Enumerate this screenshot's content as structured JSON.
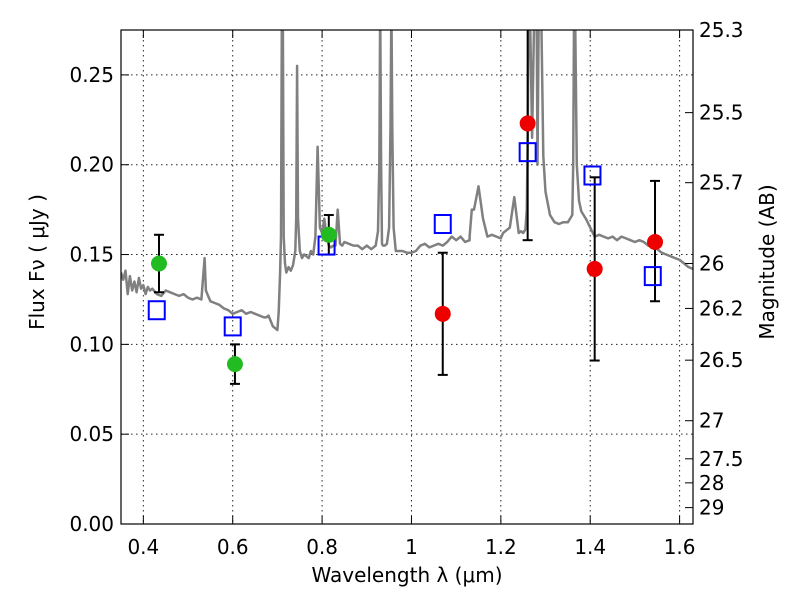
{
  "chart_data": {
    "type": "scatter",
    "xlabel": "Wavelength  λ (μm)",
    "ylabel": "Flux  Fν  ( μJy )",
    "y2label": "Magnitude (AB)",
    "xlim": [
      0.35,
      1.63
    ],
    "ylim": [
      0.0,
      0.275
    ],
    "x_ticks": [
      0.4,
      0.6,
      0.8,
      1.0,
      1.2,
      1.4,
      1.6
    ],
    "x_tick_labels": [
      "0.4",
      "0.6",
      "0.8",
      "1",
      "1.2",
      "1.4",
      "1.6"
    ],
    "y_ticks": [
      0.0,
      0.05,
      0.1,
      0.15,
      0.2,
      0.25
    ],
    "y_tick_labels": [
      "0.00",
      "0.05",
      "0.10",
      "0.15",
      "0.20",
      "0.25"
    ],
    "y2_ticks": [
      {
        "label": "25.3",
        "flux": 0.275
      },
      {
        "label": "25.5",
        "flux": 0.229
      },
      {
        "label": "25.7",
        "flux": 0.19
      },
      {
        "label": "26",
        "flux": 0.145
      },
      {
        "label": "26.2",
        "flux": 0.12
      },
      {
        "label": "26.5",
        "flux": 0.0912
      },
      {
        "label": "27",
        "flux": 0.0575
      },
      {
        "label": "27.5",
        "flux": 0.0363
      },
      {
        "label": "28",
        "flux": 0.0229
      },
      {
        "label": "29",
        "flux": 0.00912
      }
    ],
    "grid": true,
    "series": [
      {
        "marker": "line",
        "color": "#808080",
        "x": [
          0.35,
          0.355,
          0.36,
          0.365,
          0.37,
          0.375,
          0.38,
          0.385,
          0.39,
          0.395,
          0.4,
          0.405,
          0.41,
          0.415,
          0.42,
          0.43,
          0.44,
          0.45,
          0.46,
          0.47,
          0.48,
          0.49,
          0.5,
          0.51,
          0.52,
          0.53,
          0.534,
          0.537,
          0.54,
          0.545,
          0.55,
          0.56,
          0.57,
          0.58,
          0.59,
          0.6,
          0.61,
          0.62,
          0.63,
          0.64,
          0.65,
          0.66,
          0.67,
          0.675,
          0.68,
          0.69,
          0.7,
          0.703,
          0.706,
          0.708,
          0.71,
          0.712,
          0.714,
          0.717,
          0.72,
          0.725,
          0.73,
          0.735,
          0.74,
          0.742,
          0.744,
          0.746,
          0.75,
          0.755,
          0.76,
          0.765,
          0.77,
          0.775,
          0.78,
          0.785,
          0.79,
          0.795,
          0.8,
          0.805,
          0.81,
          0.815,
          0.82,
          0.825,
          0.83,
          0.835,
          0.84,
          0.845,
          0.85,
          0.86,
          0.87,
          0.88,
          0.89,
          0.9,
          0.91,
          0.92,
          0.925,
          0.928,
          0.93,
          0.932,
          0.934,
          0.936,
          0.94,
          0.945,
          0.95,
          0.953,
          0.955,
          0.957,
          0.96,
          0.965,
          0.97,
          0.98,
          0.99,
          1.0,
          1.01,
          1.02,
          1.03,
          1.04,
          1.05,
          1.06,
          1.07,
          1.08,
          1.09,
          1.1,
          1.11,
          1.12,
          1.13,
          1.13,
          1.135,
          1.14,
          1.15,
          1.16,
          1.17,
          1.18,
          1.19,
          1.2,
          1.205,
          1.21,
          1.22,
          1.23,
          1.24,
          1.245,
          1.25,
          1.255,
          1.258,
          1.26,
          1.262,
          1.265,
          1.27,
          1.275,
          1.28,
          1.282,
          1.285,
          1.29,
          1.295,
          1.3,
          1.31,
          1.32,
          1.33,
          1.34,
          1.35,
          1.355,
          1.36,
          1.362,
          1.364,
          1.366,
          1.37,
          1.375,
          1.38,
          1.39,
          1.4,
          1.41,
          1.42,
          1.43,
          1.44,
          1.45,
          1.46,
          1.47,
          1.48,
          1.49,
          1.5,
          1.51,
          1.52,
          1.53,
          1.54,
          1.55,
          1.56,
          1.57,
          1.58,
          1.59,
          1.6,
          1.61,
          1.62,
          1.63
        ],
        "y": [
          0.14,
          0.136,
          0.141,
          0.128,
          0.138,
          0.13,
          0.135,
          0.129,
          0.137,
          0.131,
          0.133,
          0.128,
          0.132,
          0.13,
          0.131,
          0.128,
          0.127,
          0.13,
          0.129,
          0.128,
          0.127,
          0.128,
          0.126,
          0.125,
          0.126,
          0.125,
          0.138,
          0.148,
          0.13,
          0.127,
          0.124,
          0.123,
          0.122,
          0.12,
          0.119,
          0.117,
          0.118,
          0.119,
          0.117,
          0.118,
          0.117,
          0.116,
          0.115,
          0.115,
          0.116,
          0.11,
          0.108,
          0.118,
          0.14,
          0.16,
          0.29,
          0.29,
          0.16,
          0.145,
          0.14,
          0.143,
          0.141,
          0.144,
          0.152,
          0.17,
          0.255,
          0.17,
          0.152,
          0.148,
          0.15,
          0.149,
          0.148,
          0.152,
          0.15,
          0.16,
          0.21,
          0.165,
          0.162,
          0.17,
          0.16,
          0.155,
          0.154,
          0.155,
          0.155,
          0.175,
          0.156,
          0.155,
          0.157,
          0.156,
          0.155,
          0.155,
          0.153,
          0.155,
          0.153,
          0.155,
          0.163,
          0.2,
          0.29,
          0.2,
          0.156,
          0.155,
          0.155,
          0.156,
          0.165,
          0.22,
          0.29,
          0.22,
          0.165,
          0.152,
          0.152,
          0.152,
          0.151,
          0.151,
          0.152,
          0.155,
          0.156,
          0.154,
          0.155,
          0.156,
          0.155,
          0.157,
          0.16,
          0.158,
          0.16,
          0.157,
          0.158,
          0.16,
          0.175,
          0.175,
          0.188,
          0.17,
          0.16,
          0.161,
          0.16,
          0.159,
          0.162,
          0.163,
          0.165,
          0.182,
          0.162,
          0.163,
          0.162,
          0.164,
          0.175,
          0.215,
          0.29,
          0.29,
          0.215,
          0.29,
          0.29,
          0.2,
          0.29,
          0.29,
          0.205,
          0.185,
          0.172,
          0.168,
          0.167,
          0.168,
          0.168,
          0.17,
          0.172,
          0.2,
          0.29,
          0.29,
          0.2,
          0.18,
          0.174,
          0.17,
          0.165,
          0.16,
          0.161,
          0.16,
          0.159,
          0.16,
          0.158,
          0.16,
          0.159,
          0.158,
          0.157,
          0.158,
          0.157,
          0.155,
          0.155,
          0.153,
          0.151,
          0.15,
          0.149,
          0.148,
          0.147,
          0.145,
          0.143,
          0.142
        ]
      },
      {
        "marker": "open-square",
        "color": "#0000ff",
        "x": [
          0.43,
          0.6,
          0.81,
          1.07,
          1.26,
          1.405,
          1.54
        ],
        "y": [
          0.119,
          0.11,
          0.155,
          0.167,
          0.207,
          0.194,
          0.138
        ]
      },
      {
        "marker": "filled-circle",
        "color": "#22bb22",
        "x": [
          0.435,
          0.605,
          0.815
        ],
        "y": [
          0.145,
          0.089,
          0.161
        ],
        "yerr_low": [
          0.016,
          0.011,
          0.011
        ],
        "yerr_high": [
          0.016,
          0.011,
          0.011
        ]
      },
      {
        "marker": "filled-circle",
        "color": "#ee0000",
        "x": [
          1.07,
          1.26,
          1.41,
          1.545
        ],
        "y": [
          0.117,
          0.223,
          0.142,
          0.157
        ],
        "yerr_low": [
          0.034,
          0.065,
          0.051,
          0.033
        ],
        "yerr_high": [
          0.034,
          0.065,
          0.051,
          0.034
        ]
      }
    ]
  }
}
